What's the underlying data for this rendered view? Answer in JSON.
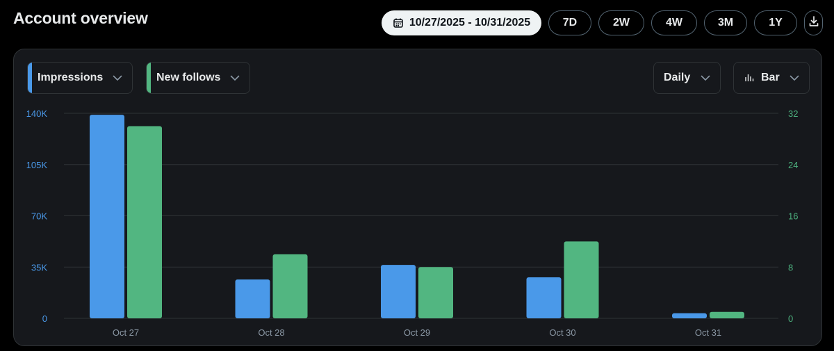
{
  "header": {
    "title": "Account overview"
  },
  "range": {
    "date_range": "10/27/2025 - 10/31/2025",
    "options": [
      "7D",
      "2W",
      "4W",
      "3M",
      "1Y"
    ],
    "calendar_icon": "calendar-icon",
    "download_icon": "download-icon"
  },
  "controls": {
    "metric1": "Impressions",
    "metric2": "New follows",
    "granularity": "Daily",
    "chart_type": "Bar"
  },
  "colors": {
    "impressions": "#4a99e9",
    "new_follows": "#52b681",
    "left_axis": "#4a99e9",
    "right_axis": "#4caf7d"
  },
  "chart_data": {
    "type": "bar",
    "categories": [
      "Oct 27",
      "Oct 28",
      "Oct 29",
      "Oct 30",
      "Oct 31"
    ],
    "series": [
      {
        "name": "Impressions",
        "axis": "left",
        "values": [
          139000,
          26500,
          36500,
          28000,
          3500
        ]
      },
      {
        "name": "New follows",
        "axis": "right",
        "values": [
          30,
          10,
          8,
          12,
          1
        ]
      }
    ],
    "left_axis": {
      "ylim": [
        0,
        140000
      ],
      "ticks": [
        "0",
        "35K",
        "70K",
        "105K",
        "140K"
      ]
    },
    "right_axis": {
      "ylim": [
        0,
        32
      ],
      "ticks": [
        "0",
        "8",
        "16",
        "24",
        "32"
      ]
    },
    "grid": true
  }
}
